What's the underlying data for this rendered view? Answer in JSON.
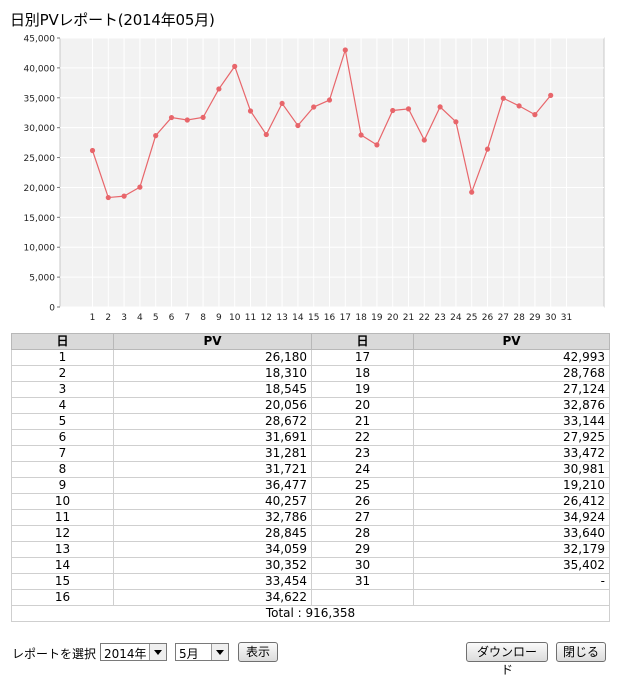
{
  "title": "日別PVレポート(2014年05月)",
  "chart_data": {
    "type": "line",
    "x": [
      1,
      2,
      3,
      4,
      5,
      6,
      7,
      8,
      9,
      10,
      11,
      12,
      13,
      14,
      15,
      16,
      17,
      18,
      19,
      20,
      21,
      22,
      23,
      24,
      25,
      26,
      27,
      28,
      29,
      30
    ],
    "values": [
      26180,
      18310,
      18545,
      20056,
      28672,
      31691,
      31281,
      31721,
      36477,
      40257,
      32786,
      28845,
      34059,
      30352,
      33454,
      34622,
      42993,
      28768,
      27124,
      32876,
      33144,
      27925,
      33472,
      30981,
      19210,
      26412,
      34924,
      33640,
      32179,
      35402
    ],
    "x_ticks": [
      "1",
      "2",
      "3",
      "4",
      "5",
      "6",
      "7",
      "8",
      "9",
      "10",
      "11",
      "12",
      "13",
      "14",
      "15",
      "16",
      "17",
      "18",
      "19",
      "20",
      "21",
      "22",
      "23",
      "24",
      "25",
      "26",
      "27",
      "28",
      "29",
      "30",
      "31"
    ],
    "y_ticks": [
      "0",
      "5,000",
      "10,000",
      "15,000",
      "20,000",
      "25,000",
      "30,000",
      "35,000",
      "40,000",
      "45,000"
    ],
    "ylim": [
      0,
      45000
    ],
    "xlim": [
      1,
      31
    ],
    "grid": true,
    "line_color": "#e8666b",
    "background": "#f2f2f2"
  },
  "table": {
    "headers": [
      "日",
      "PV",
      "日",
      "PV"
    ],
    "rows": [
      [
        "1",
        "26,180",
        "17",
        "42,993"
      ],
      [
        "2",
        "18,310",
        "18",
        "28,768"
      ],
      [
        "3",
        "18,545",
        "19",
        "27,124"
      ],
      [
        "4",
        "20,056",
        "20",
        "32,876"
      ],
      [
        "5",
        "28,672",
        "21",
        "33,144"
      ],
      [
        "6",
        "31,691",
        "22",
        "27,925"
      ],
      [
        "7",
        "31,281",
        "23",
        "33,472"
      ],
      [
        "8",
        "31,721",
        "24",
        "30,981"
      ],
      [
        "9",
        "36,477",
        "25",
        "19,210"
      ],
      [
        "10",
        "40,257",
        "26",
        "26,412"
      ],
      [
        "11",
        "32,786",
        "27",
        "34,924"
      ],
      [
        "12",
        "28,845",
        "28",
        "33,640"
      ],
      [
        "13",
        "34,059",
        "29",
        "32,179"
      ],
      [
        "14",
        "30,352",
        "30",
        "35,402"
      ],
      [
        "15",
        "33,454",
        "31",
        "-"
      ],
      [
        "16",
        "34,622",
        "",
        ""
      ]
    ],
    "total": "Total : 916,358"
  },
  "controls": {
    "label": "レポートを選択",
    "year": "2014年",
    "month": "5月",
    "show": "表示",
    "download": "ダウンロード",
    "close": "閉じる"
  }
}
